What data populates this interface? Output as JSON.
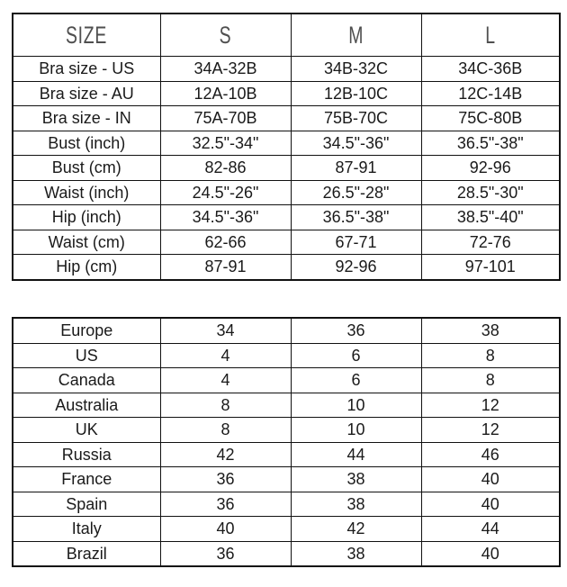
{
  "size_chart": {
    "header": [
      "SIZE",
      "S",
      "M",
      "L"
    ],
    "rows": [
      {
        "label": "Bra size - US",
        "values": [
          "34A-32B",
          "34B-32C",
          "34C-36B"
        ]
      },
      {
        "label": "Bra size - AU",
        "values": [
          "12A-10B",
          "12B-10C",
          "12C-14B"
        ]
      },
      {
        "label": "Bra size - IN",
        "values": [
          "75A-70B",
          "75B-70C",
          "75C-80B"
        ]
      },
      {
        "label": "Bust (inch)",
        "values": [
          "32.5\"-34\"",
          "34.5\"-36\"",
          "36.5\"-38\""
        ]
      },
      {
        "label": "Bust (cm)",
        "values": [
          "82-86",
          "87-91",
          "92-96"
        ]
      },
      {
        "label": "Waist (inch)",
        "values": [
          "24.5\"-26\"",
          "26.5\"-28\"",
          "28.5\"-30\""
        ]
      },
      {
        "label": "Hip (inch)",
        "values": [
          "34.5\"-36\"",
          "36.5\"-38\"",
          "38.5\"-40\""
        ]
      },
      {
        "label": "Waist (cm)",
        "values": [
          "62-66",
          "67-71",
          "72-76"
        ]
      },
      {
        "label": "Hip (cm)",
        "values": [
          "87-91",
          "92-96",
          "97-101"
        ]
      }
    ]
  },
  "country_chart": {
    "rows": [
      {
        "label": "Europe",
        "values": [
          "34",
          "36",
          "38"
        ]
      },
      {
        "label": "US",
        "values": [
          "4",
          "6",
          "8"
        ]
      },
      {
        "label": "Canada",
        "values": [
          "4",
          "6",
          "8"
        ]
      },
      {
        "label": "Australia",
        "values": [
          "8",
          "10",
          "12"
        ]
      },
      {
        "label": "UK",
        "values": [
          "8",
          "10",
          "12"
        ]
      },
      {
        "label": "Russia",
        "values": [
          "42",
          "44",
          "46"
        ]
      },
      {
        "label": "France",
        "values": [
          "36",
          "38",
          "40"
        ]
      },
      {
        "label": "Spain",
        "values": [
          "36",
          "38",
          "40"
        ]
      },
      {
        "label": "Italy",
        "values": [
          "40",
          "42",
          "44"
        ]
      },
      {
        "label": "Brazil",
        "values": [
          "36",
          "38",
          "40"
        ]
      }
    ]
  },
  "colors": {
    "border": "#111111",
    "header_text": "#4f4f4f",
    "body_text": "#1a1a1a",
    "background": "#ffffff"
  }
}
